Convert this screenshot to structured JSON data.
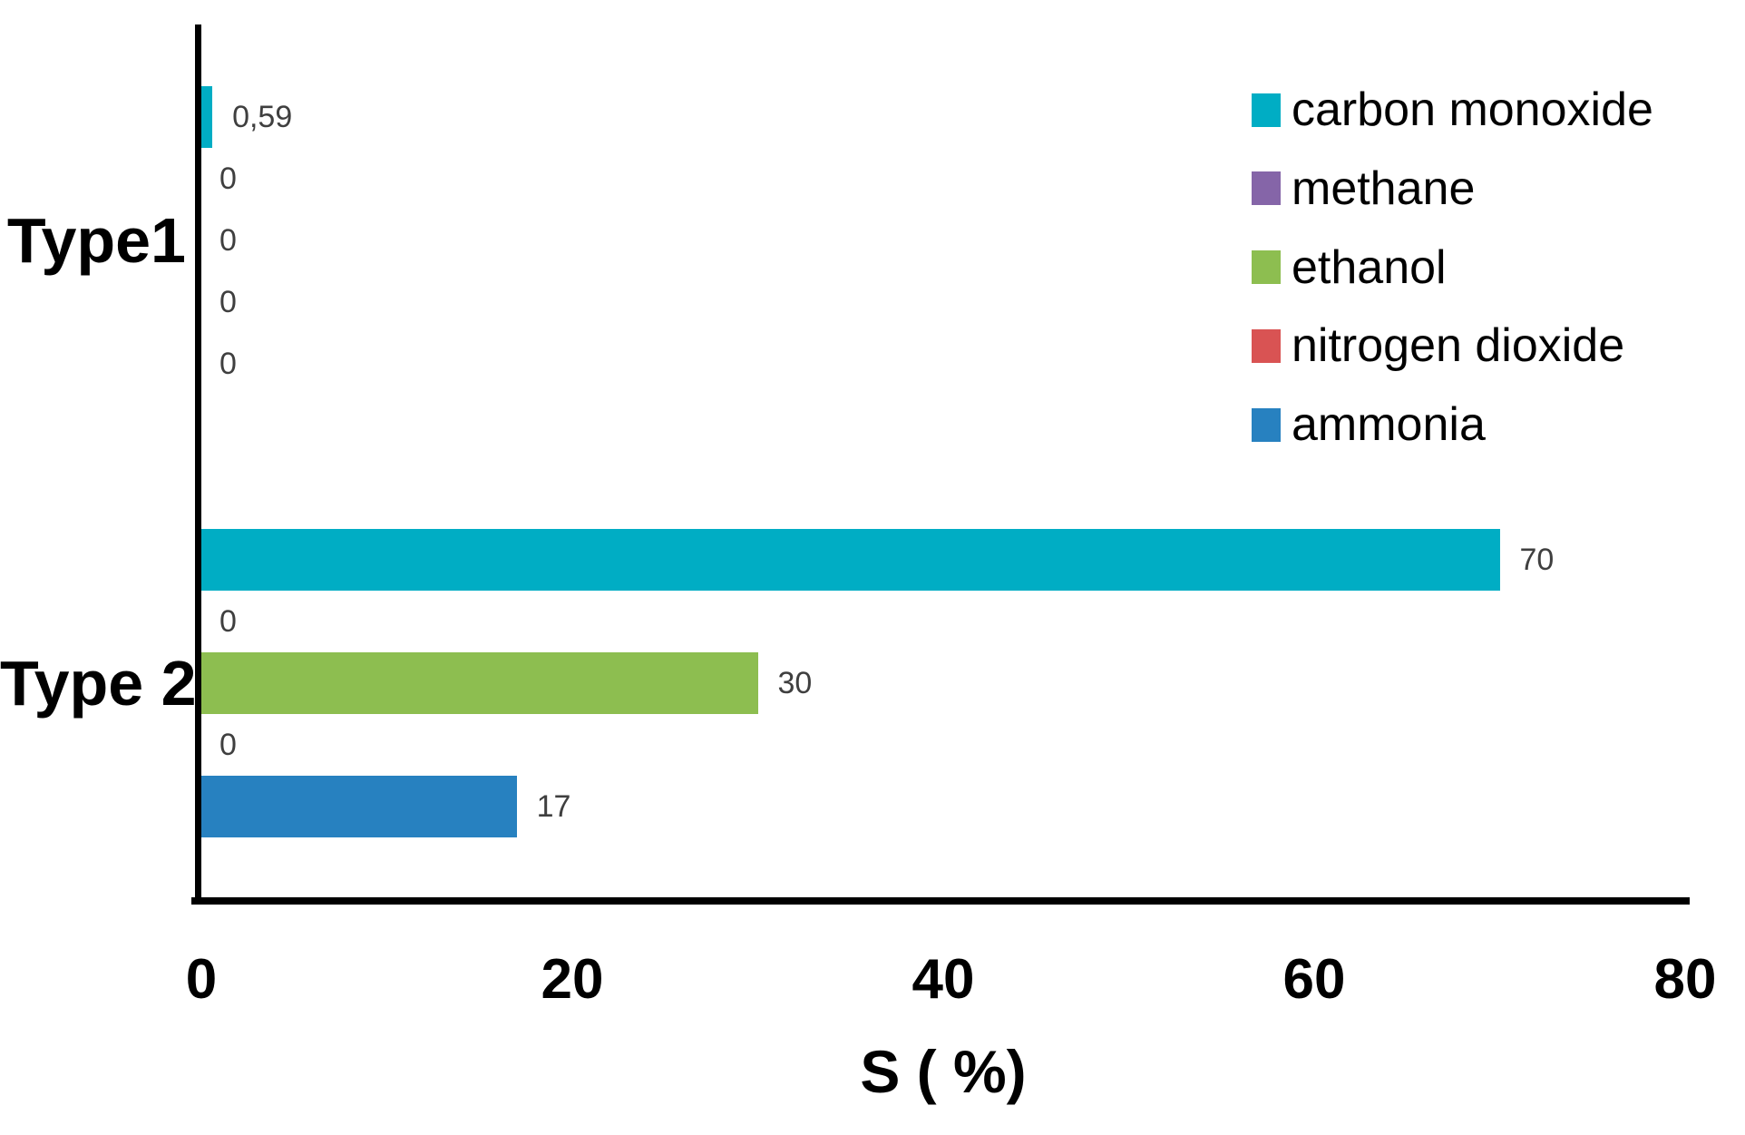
{
  "chart_data": {
    "type": "bar",
    "orientation": "horizontal",
    "title": "",
    "xlabel": "S ( %)",
    "ylabel": "",
    "xlim": [
      0,
      80
    ],
    "x_ticks": [
      0,
      20,
      40,
      60,
      80
    ],
    "grid": false,
    "legend_position": "upper right",
    "categories": [
      "Type1",
      "Type 2"
    ],
    "series": [
      {
        "name": "carbon monoxide",
        "color": "#00ADC4",
        "values": [
          0.59,
          70
        ],
        "value_labels": [
          "0,59",
          "70"
        ]
      },
      {
        "name": "methane",
        "color": "#8565A8",
        "values": [
          0,
          0
        ],
        "value_labels": [
          "0",
          "0"
        ]
      },
      {
        "name": "ethanol",
        "color": "#8DBE50",
        "values": [
          0,
          30
        ],
        "value_labels": [
          "0",
          "30"
        ]
      },
      {
        "name": "nitrogen dioxide",
        "color": "#D95353",
        "values": [
          0,
          0
        ],
        "value_labels": [
          "0",
          "0"
        ]
      },
      {
        "name": "ammonia",
        "color": "#2781C0",
        "values": [
          0,
          17
        ],
        "value_labels": [
          "0",
          "17"
        ]
      }
    ],
    "value_label_color": "#3f3f3f",
    "axis_color": "#000000",
    "background_color": "#ffffff"
  }
}
